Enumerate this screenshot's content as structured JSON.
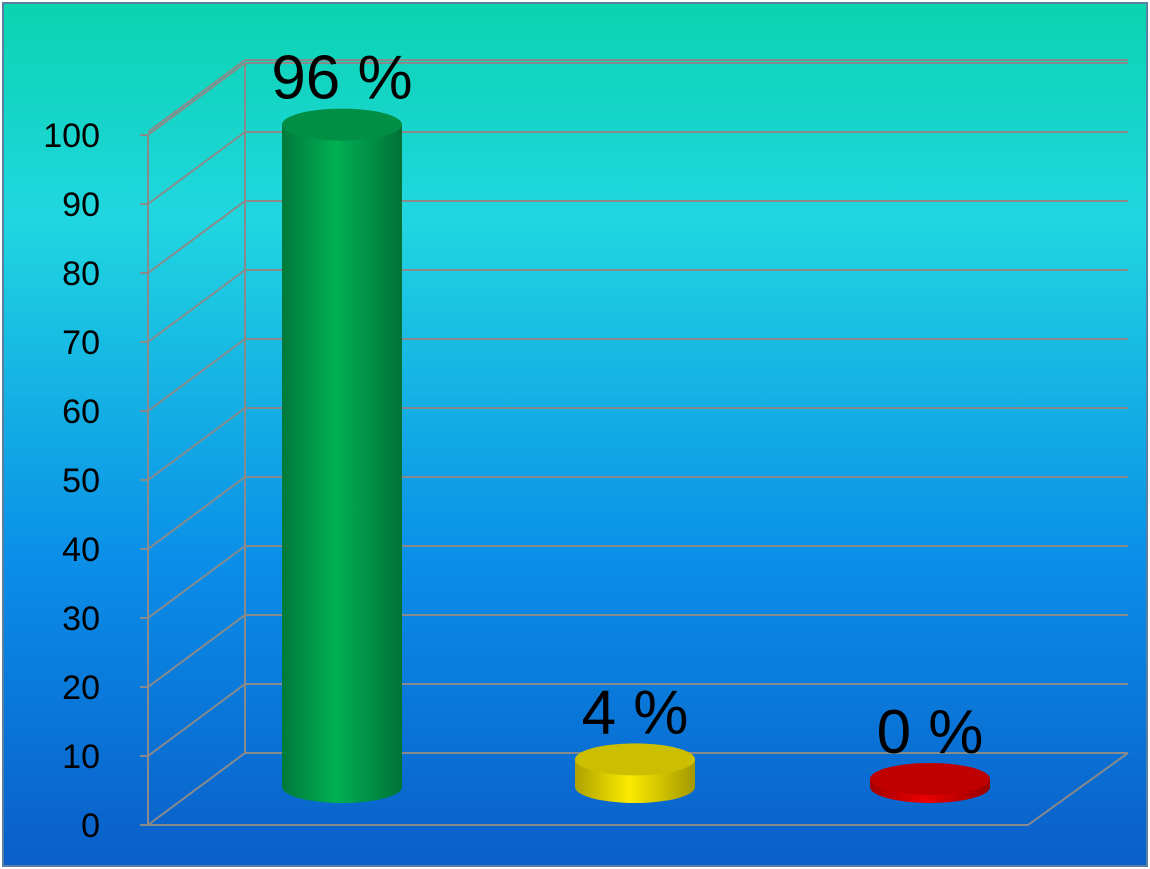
{
  "chart_data": {
    "type": "bar",
    "categories": [
      "",
      "",
      ""
    ],
    "values": [
      96,
      4,
      0
    ],
    "data_labels": [
      "96 %",
      "4 %",
      "0 %"
    ],
    "ylim": [
      0,
      100
    ],
    "y_ticks": [
      "0",
      "10",
      "20",
      "30",
      "40",
      "50",
      "60",
      "70",
      "80",
      "90",
      "100"
    ],
    "title": "",
    "xlabel": "",
    "ylabel": "",
    "grid": true,
    "legend": "none",
    "style": "3d-cylinder",
    "colors": [
      "#00a850",
      "#f0e000",
      "#e00000"
    ],
    "background_gradient": [
      "#0bd4b0",
      "#20d6e0",
      "#0a8ee8",
      "#0a5ec8"
    ]
  }
}
